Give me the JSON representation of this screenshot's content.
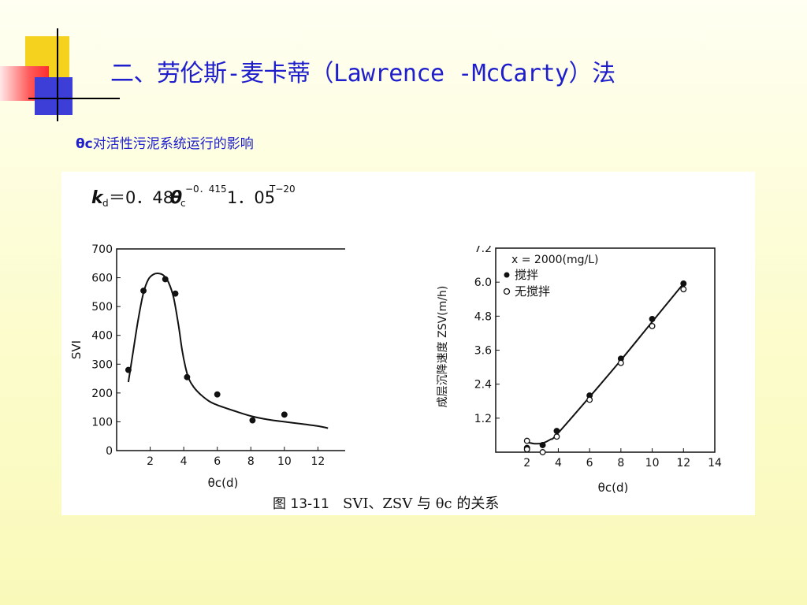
{
  "title": "二、劳伦斯-麦卡蒂（Lawrence -McCarty）法",
  "subtitle": {
    "symbol": "θc",
    "text": "对活性污泥系统运行的影响"
  },
  "equation": {
    "lhs": "k",
    "lhs_sub": "d",
    "coef": "＝0．48",
    "theta": "θ",
    "theta_sub": "c",
    "exp1": "−0．415",
    "factor": "1．05",
    "exp2": "T−20"
  },
  "figure_caption": {
    "number": "图 13-11",
    "text": "SVI、ZSV 与 θc 的关系"
  },
  "colors": {
    "title": "#1e1ecc",
    "accent_yellow": "#f4d21e",
    "accent_red": "#ff2e2e",
    "accent_blue": "#3d3dd8"
  },
  "chart_data": [
    {
      "type": "scatter",
      "xlabel": "θc(d)",
      "ylabel": "SVI",
      "xlim": [
        0,
        14
      ],
      "ylim": [
        0,
        700
      ],
      "xticks": [
        2,
        4,
        6,
        8,
        10,
        12
      ],
      "yticks": [
        0,
        100,
        200,
        300,
        400,
        500,
        600,
        700
      ],
      "grid": false,
      "series": [
        {
          "marker": "filled",
          "x": [
            0.7,
            1.6,
            2.9,
            3.5,
            4.2,
            6.0,
            8.1,
            10.0
          ],
          "y": [
            280,
            555,
            595,
            545,
            255,
            195,
            105,
            125
          ]
        }
      ],
      "fit_curve": {
        "x": [
          0.7,
          1.0,
          1.3,
          1.6,
          1.9,
          2.2,
          2.5,
          2.8,
          3.1,
          3.4,
          3.7,
          3.9,
          4.1,
          4.3,
          4.6,
          5.0,
          5.5,
          6.0,
          7.0,
          8.0,
          9.0,
          10.0,
          11.0,
          12.0,
          12.6
        ],
        "y": [
          238,
          350,
          460,
          548,
          595,
          612,
          615,
          608,
          583,
          530,
          430,
          350,
          290,
          250,
          220,
          195,
          172,
          158,
          138,
          120,
          108,
          100,
          93,
          85,
          78
        ]
      }
    },
    {
      "type": "scatter",
      "xlabel": "θc(d)",
      "ylabel": "成层沉降速度 ZSV(m/h)",
      "xlim": [
        0,
        14
      ],
      "ylim": [
        0,
        7.2
      ],
      "xticks": [
        2,
        4,
        6,
        8,
        10,
        12,
        14
      ],
      "yticks": [
        1.2,
        2.4,
        3.6,
        4.8,
        6.0,
        7.2
      ],
      "legend_title": "x = 2000(mg/L)",
      "legend_position": "top-left",
      "grid": false,
      "series": [
        {
          "name": "搅拌",
          "marker": "filled",
          "x": [
            2.0,
            3.0,
            3.9,
            6.0,
            8.0,
            10.0,
            12.0
          ],
          "y": [
            0.15,
            0.25,
            0.75,
            2.0,
            3.3,
            4.7,
            5.95
          ]
        },
        {
          "name": "无搅拌",
          "marker": "open",
          "x": [
            2.0,
            2.0,
            3.0,
            3.9,
            6.0,
            8.0,
            10.0,
            12.0
          ],
          "y": [
            0.4,
            0.1,
            0.0,
            0.55,
            1.85,
            3.15,
            4.45,
            5.75
          ]
        }
      ],
      "fit_curve": {
        "x": [
          2.0,
          2.5,
          3.0,
          3.5,
          3.9,
          6.0,
          8.0,
          10.0,
          12.0
        ],
        "y": [
          0.35,
          0.3,
          0.32,
          0.45,
          0.62,
          1.95,
          3.25,
          4.6,
          5.95
        ]
      }
    }
  ]
}
